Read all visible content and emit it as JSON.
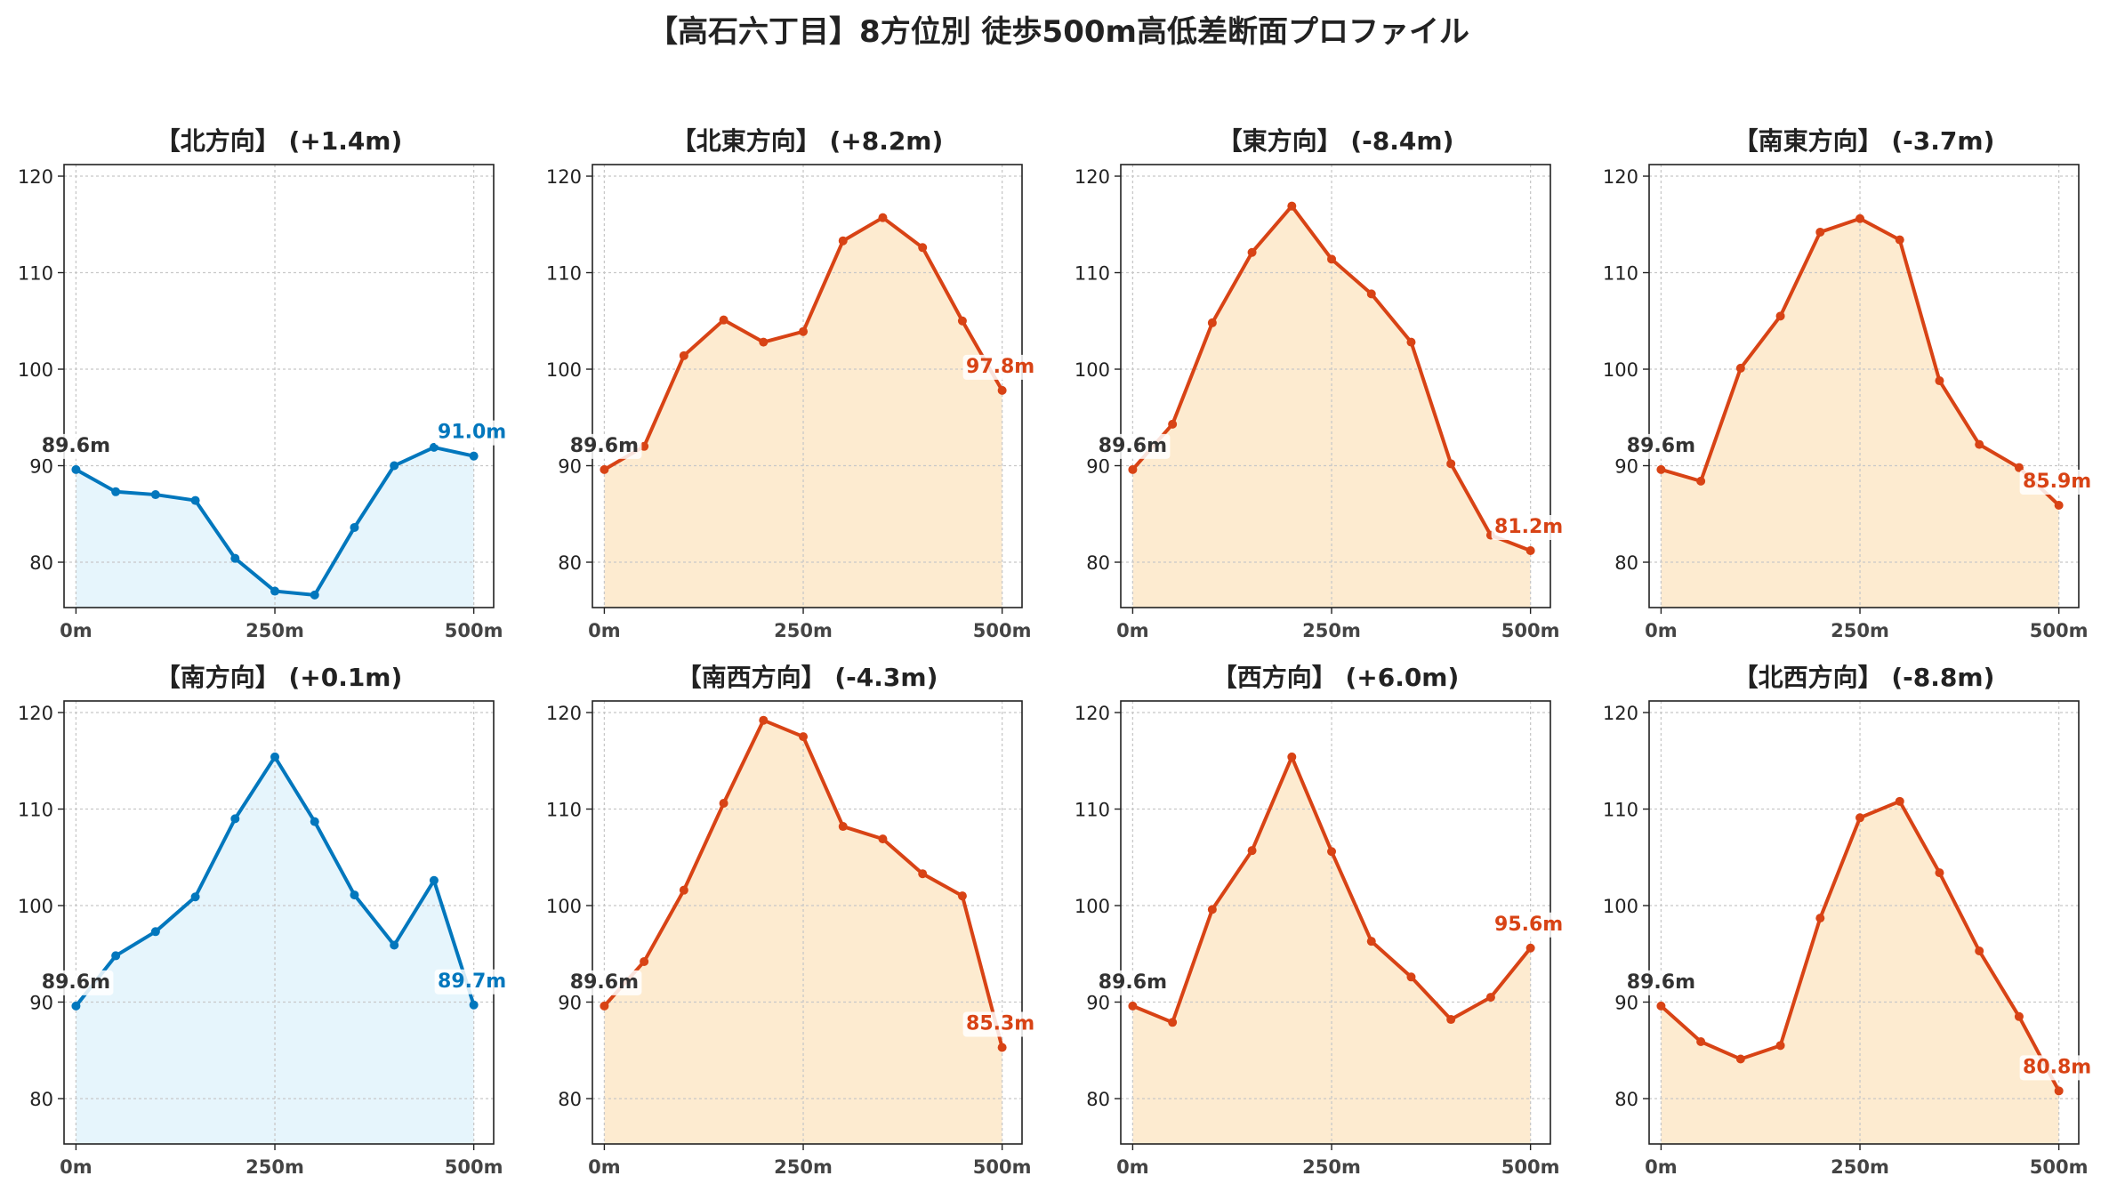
{
  "title": "【高石六丁目】8方位別 徒歩500m高低差断面プロファイル",
  "colors": {
    "up_line": "#d84315",
    "up_fill": "#fdebd0",
    "flat_line": "#0277bd",
    "flat_fill": "#e6f5fc",
    "start_label": "#333333"
  },
  "chart_data": [
    {
      "type": "area",
      "title": "【北方向】 (+1.4m)",
      "x": [
        0,
        50,
        100,
        150,
        200,
        250,
        300,
        350,
        400,
        450,
        500
      ],
      "values": [
        89.6,
        87.3,
        87.0,
        86.4,
        80.4,
        77.0,
        76.6,
        83.6,
        90.0,
        91.9,
        91.0
      ],
      "color": "blue",
      "start_label": "89.6m",
      "end_label": "91.0m",
      "ylim": [
        75.3,
        121.2
      ],
      "yticks": [
        80,
        90,
        100,
        110,
        120
      ],
      "xticks": [
        "0m",
        "250m",
        "500m"
      ],
      "grid": true
    },
    {
      "type": "area",
      "title": "【北東方向】 (+8.2m)",
      "x": [
        0,
        50,
        100,
        150,
        200,
        250,
        300,
        350,
        400,
        450,
        500
      ],
      "values": [
        89.6,
        92.0,
        101.4,
        105.1,
        102.8,
        103.9,
        113.3,
        115.7,
        112.6,
        105.0,
        97.8
      ],
      "color": "orange",
      "start_label": "89.6m",
      "end_label": "97.8m",
      "ylim": [
        75.3,
        121.2
      ],
      "yticks": [
        80,
        90,
        100,
        110,
        120
      ],
      "xticks": [
        "0m",
        "250m",
        "500m"
      ],
      "grid": true
    },
    {
      "type": "area",
      "title": "【東方向】 (-8.4m)",
      "x": [
        0,
        50,
        100,
        150,
        200,
        250,
        300,
        350,
        400,
        450,
        500
      ],
      "values": [
        89.6,
        94.3,
        104.8,
        112.1,
        116.9,
        111.4,
        107.8,
        102.8,
        90.2,
        82.8,
        81.2
      ],
      "color": "orange",
      "start_label": "89.6m",
      "end_label": "81.2m",
      "ylim": [
        75.3,
        121.2
      ],
      "yticks": [
        80,
        90,
        100,
        110,
        120
      ],
      "xticks": [
        "0m",
        "250m",
        "500m"
      ],
      "grid": true
    },
    {
      "type": "area",
      "title": "【南東方向】 (-3.7m)",
      "x": [
        0,
        50,
        100,
        150,
        200,
        250,
        300,
        350,
        400,
        450,
        500
      ],
      "values": [
        89.6,
        88.4,
        100.1,
        105.5,
        114.2,
        115.6,
        113.4,
        98.8,
        92.2,
        89.8,
        85.9
      ],
      "color": "orange",
      "start_label": "89.6m",
      "end_label": "85.9m",
      "ylim": [
        75.3,
        121.2
      ],
      "yticks": [
        80,
        90,
        100,
        110,
        120
      ],
      "xticks": [
        "0m",
        "250m",
        "500m"
      ],
      "grid": true
    },
    {
      "type": "area",
      "title": "【南方向】 (+0.1m)",
      "x": [
        0,
        50,
        100,
        150,
        200,
        250,
        300,
        350,
        400,
        450,
        500
      ],
      "values": [
        89.6,
        94.8,
        97.3,
        100.9,
        109.0,
        115.4,
        108.7,
        101.1,
        95.9,
        102.6,
        89.7
      ],
      "color": "blue",
      "start_label": "89.6m",
      "end_label": "89.7m",
      "ylim": [
        75.3,
        121.2
      ],
      "yticks": [
        80,
        90,
        100,
        110,
        120
      ],
      "xticks": [
        "0m",
        "250m",
        "500m"
      ],
      "grid": true
    },
    {
      "type": "area",
      "title": "【南西方向】 (-4.3m)",
      "x": [
        0,
        50,
        100,
        150,
        200,
        250,
        300,
        350,
        400,
        450,
        500
      ],
      "values": [
        89.6,
        94.2,
        101.6,
        110.6,
        119.2,
        117.5,
        108.2,
        106.9,
        103.3,
        101.0,
        85.3
      ],
      "color": "orange",
      "start_label": "89.6m",
      "end_label": "85.3m",
      "ylim": [
        75.3,
        121.2
      ],
      "yticks": [
        80,
        90,
        100,
        110,
        120
      ],
      "xticks": [
        "0m",
        "250m",
        "500m"
      ],
      "grid": true
    },
    {
      "type": "area",
      "title": "【西方向】 (+6.0m)",
      "x": [
        0,
        50,
        100,
        150,
        200,
        250,
        300,
        350,
        400,
        450,
        500
      ],
      "values": [
        89.6,
        87.9,
        99.6,
        105.7,
        115.4,
        105.6,
        96.3,
        92.6,
        88.2,
        90.5,
        95.6
      ],
      "color": "orange",
      "start_label": "89.6m",
      "end_label": "95.6m",
      "ylim": [
        75.3,
        121.2
      ],
      "yticks": [
        80,
        90,
        100,
        110,
        120
      ],
      "xticks": [
        "0m",
        "250m",
        "500m"
      ],
      "grid": true
    },
    {
      "type": "area",
      "title": "【北西方向】 (-8.8m)",
      "x": [
        0,
        50,
        100,
        150,
        200,
        250,
        300,
        350,
        400,
        450,
        500
      ],
      "values": [
        89.6,
        85.9,
        84.1,
        85.5,
        98.7,
        109.1,
        110.8,
        103.4,
        95.3,
        88.5,
        80.8
      ],
      "color": "orange",
      "start_label": "89.6m",
      "end_label": "80.8m",
      "ylim": [
        75.3,
        121.2
      ],
      "yticks": [
        80,
        90,
        100,
        110,
        120
      ],
      "xticks": [
        "0m",
        "250m",
        "500m"
      ],
      "grid": true
    }
  ]
}
